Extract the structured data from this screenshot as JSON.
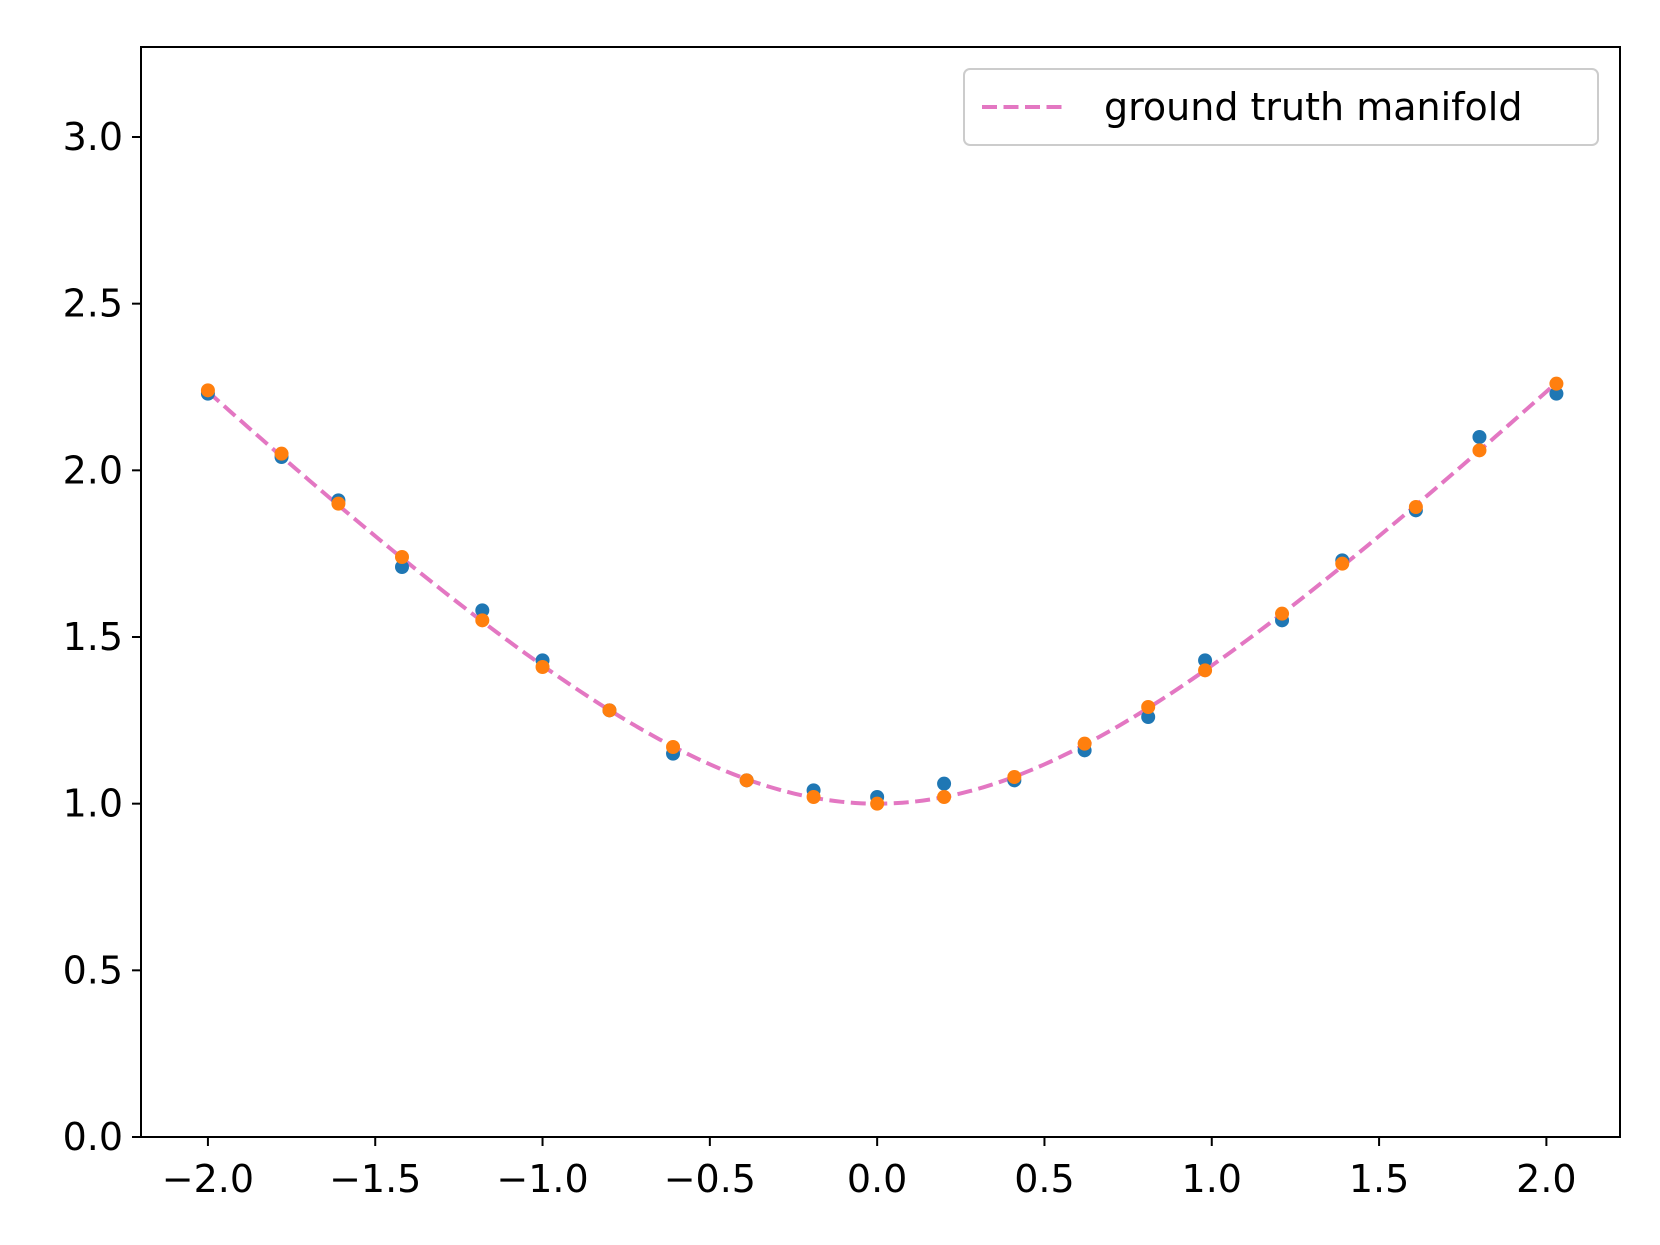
{
  "chart_data": {
    "type": "scatter",
    "title": "",
    "xlabel": "",
    "ylabel": "",
    "xlim": [
      -2.2,
      2.22
    ],
    "ylim": [
      0.0,
      3.27
    ],
    "xticks": [
      -2.0,
      -1.5,
      -1.0,
      -0.5,
      0.0,
      0.5,
      1.0,
      1.5,
      2.0
    ],
    "xtick_labels": [
      "−2.0",
      "−1.5",
      "−1.0",
      "−0.5",
      "0.0",
      "0.5",
      "1.0",
      "1.5",
      "2.0"
    ],
    "yticks": [
      0.0,
      0.5,
      1.0,
      1.5,
      2.0,
      2.5,
      3.0
    ],
    "ytick_labels": [
      "0.0",
      "0.5",
      "1.0",
      "1.5",
      "2.0",
      "2.5",
      "3.0"
    ],
    "grid": false,
    "legend": {
      "position": "upper right",
      "entries": [
        "ground truth manifold"
      ]
    },
    "line": {
      "name": "ground truth manifold",
      "style": "dashed",
      "color": "#e377c2",
      "function": "sqrt(1 + x^2)",
      "x_range": [
        -2.0,
        2.03
      ]
    },
    "series": [
      {
        "color": "#1f77b4",
        "points": [
          [
            -2.0,
            2.23
          ],
          [
            -1.78,
            2.04
          ],
          [
            -1.61,
            1.91
          ],
          [
            -1.42,
            1.71
          ],
          [
            -1.18,
            1.58
          ],
          [
            -1.0,
            1.43
          ],
          [
            -0.8,
            1.28
          ],
          [
            -0.61,
            1.15
          ],
          [
            -0.39,
            1.07
          ],
          [
            -0.19,
            1.04
          ],
          [
            0.0,
            1.02
          ],
          [
            0.2,
            1.06
          ],
          [
            0.41,
            1.07
          ],
          [
            0.62,
            1.16
          ],
          [
            0.81,
            1.26
          ],
          [
            0.98,
            1.43
          ],
          [
            1.21,
            1.55
          ],
          [
            1.39,
            1.73
          ],
          [
            1.61,
            1.88
          ],
          [
            1.8,
            2.1
          ],
          [
            2.03,
            2.23
          ]
        ]
      },
      {
        "color": "#ff7f0e",
        "points": [
          [
            -2.0,
            2.24
          ],
          [
            -1.78,
            2.05
          ],
          [
            -1.61,
            1.9
          ],
          [
            -1.42,
            1.74
          ],
          [
            -1.18,
            1.55
          ],
          [
            -1.0,
            1.41
          ],
          [
            -0.8,
            1.28
          ],
          [
            -0.61,
            1.17
          ],
          [
            -0.39,
            1.07
          ],
          [
            -0.19,
            1.02
          ],
          [
            0.0,
            1.0
          ],
          [
            0.2,
            1.02
          ],
          [
            0.41,
            1.08
          ],
          [
            0.62,
            1.18
          ],
          [
            0.81,
            1.29
          ],
          [
            0.98,
            1.4
          ],
          [
            1.21,
            1.57
          ],
          [
            1.39,
            1.72
          ],
          [
            1.61,
            1.89
          ],
          [
            1.8,
            2.06
          ],
          [
            2.03,
            2.26
          ]
        ]
      }
    ]
  }
}
